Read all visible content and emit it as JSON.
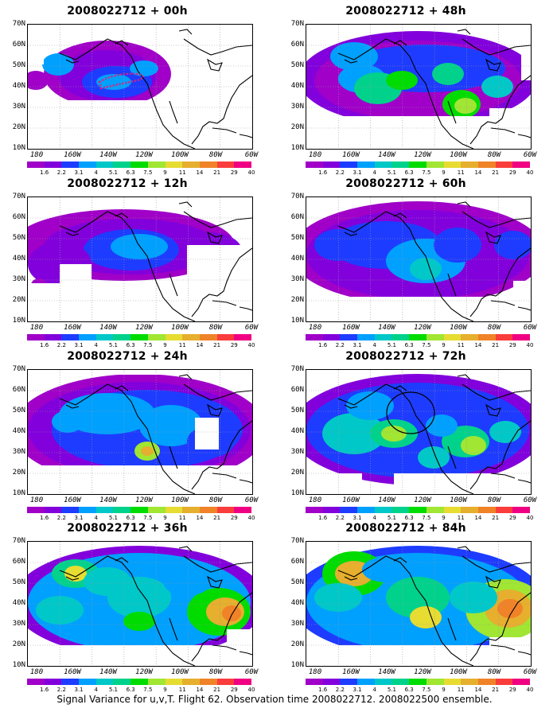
{
  "caption": "Signal Variance for u,v,T. Flight 62. Observation time 2008022712. 2008022500 ensemble.",
  "y_axis_labels": [
    "70N",
    "60N",
    "50N",
    "40N",
    "30N",
    "20N",
    "10N"
  ],
  "x_axis_labels": [
    "180",
    "160W",
    "140W",
    "120W",
    "100W",
    "80W",
    "60W"
  ],
  "colorbar": {
    "labels": [
      "1.6",
      "2.2",
      "3.1",
      "4",
      "5.1",
      "6.3",
      "7.5",
      "9",
      "11",
      "14",
      "21",
      "29",
      "40"
    ],
    "colors": [
      "#a000c8",
      "#8200dc",
      "#1e3cff",
      "#00a0ff",
      "#00c8c8",
      "#00d28c",
      "#00dc00",
      "#a0e632",
      "#e6dc32",
      "#e6af2d",
      "#f08228",
      "#fa3c3c",
      "#f00082"
    ]
  },
  "panels": [
    {
      "title": "2008022712 + 00h"
    },
    {
      "title": "2008022712 + 48h"
    },
    {
      "title": "2008022712 + 12h"
    },
    {
      "title": "2008022712 + 60h"
    },
    {
      "title": "2008022712 + 24h"
    },
    {
      "title": "2008022712 + 72h"
    },
    {
      "title": "2008022712 + 36h"
    },
    {
      "title": "2008022712 + 84h"
    }
  ],
  "colors": {
    "coastline": "#000000",
    "grid": "#999999",
    "flight_track": "#e0207a"
  }
}
